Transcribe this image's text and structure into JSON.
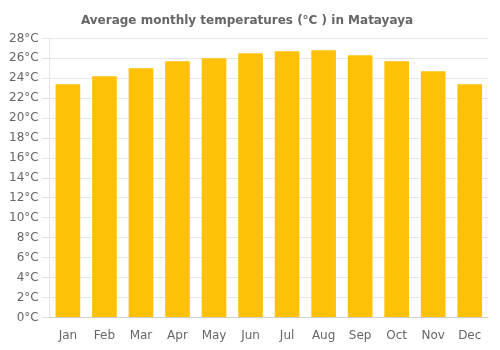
{
  "chart_data": {
    "type": "bar",
    "title": "Average monthly temperatures (°C ) in Matayaya",
    "categories": [
      "Jan",
      "Feb",
      "Mar",
      "Apr",
      "May",
      "Jun",
      "Jul",
      "Aug",
      "Sep",
      "Oct",
      "Nov",
      "Dec"
    ],
    "values": [
      23.4,
      24.2,
      25.0,
      25.7,
      26.0,
      26.5,
      26.7,
      26.8,
      26.3,
      25.7,
      24.7,
      23.4
    ],
    "color": "#FFC107",
    "ylim": [
      0,
      28
    ],
    "yticks": [
      {
        "value": 0,
        "label": "0°C"
      },
      {
        "value": 2,
        "label": "2°C"
      },
      {
        "value": 4,
        "label": "4°C"
      },
      {
        "value": 6,
        "label": "6°C"
      },
      {
        "value": 8,
        "label": "8°C"
      },
      {
        "value": 10,
        "label": "10°C"
      },
      {
        "value": 12,
        "label": "12°C"
      },
      {
        "value": 14,
        "label": "14°C"
      },
      {
        "value": 16,
        "label": "16°C"
      },
      {
        "value": 18,
        "label": "18°C"
      },
      {
        "value": 20,
        "label": "20°C"
      },
      {
        "value": 22,
        "label": "22°C"
      },
      {
        "value": 24,
        "label": "24°C"
      },
      {
        "value": 26,
        "label": "26°C"
      },
      {
        "value": 28,
        "label": "28°C"
      }
    ],
    "grid": true
  }
}
